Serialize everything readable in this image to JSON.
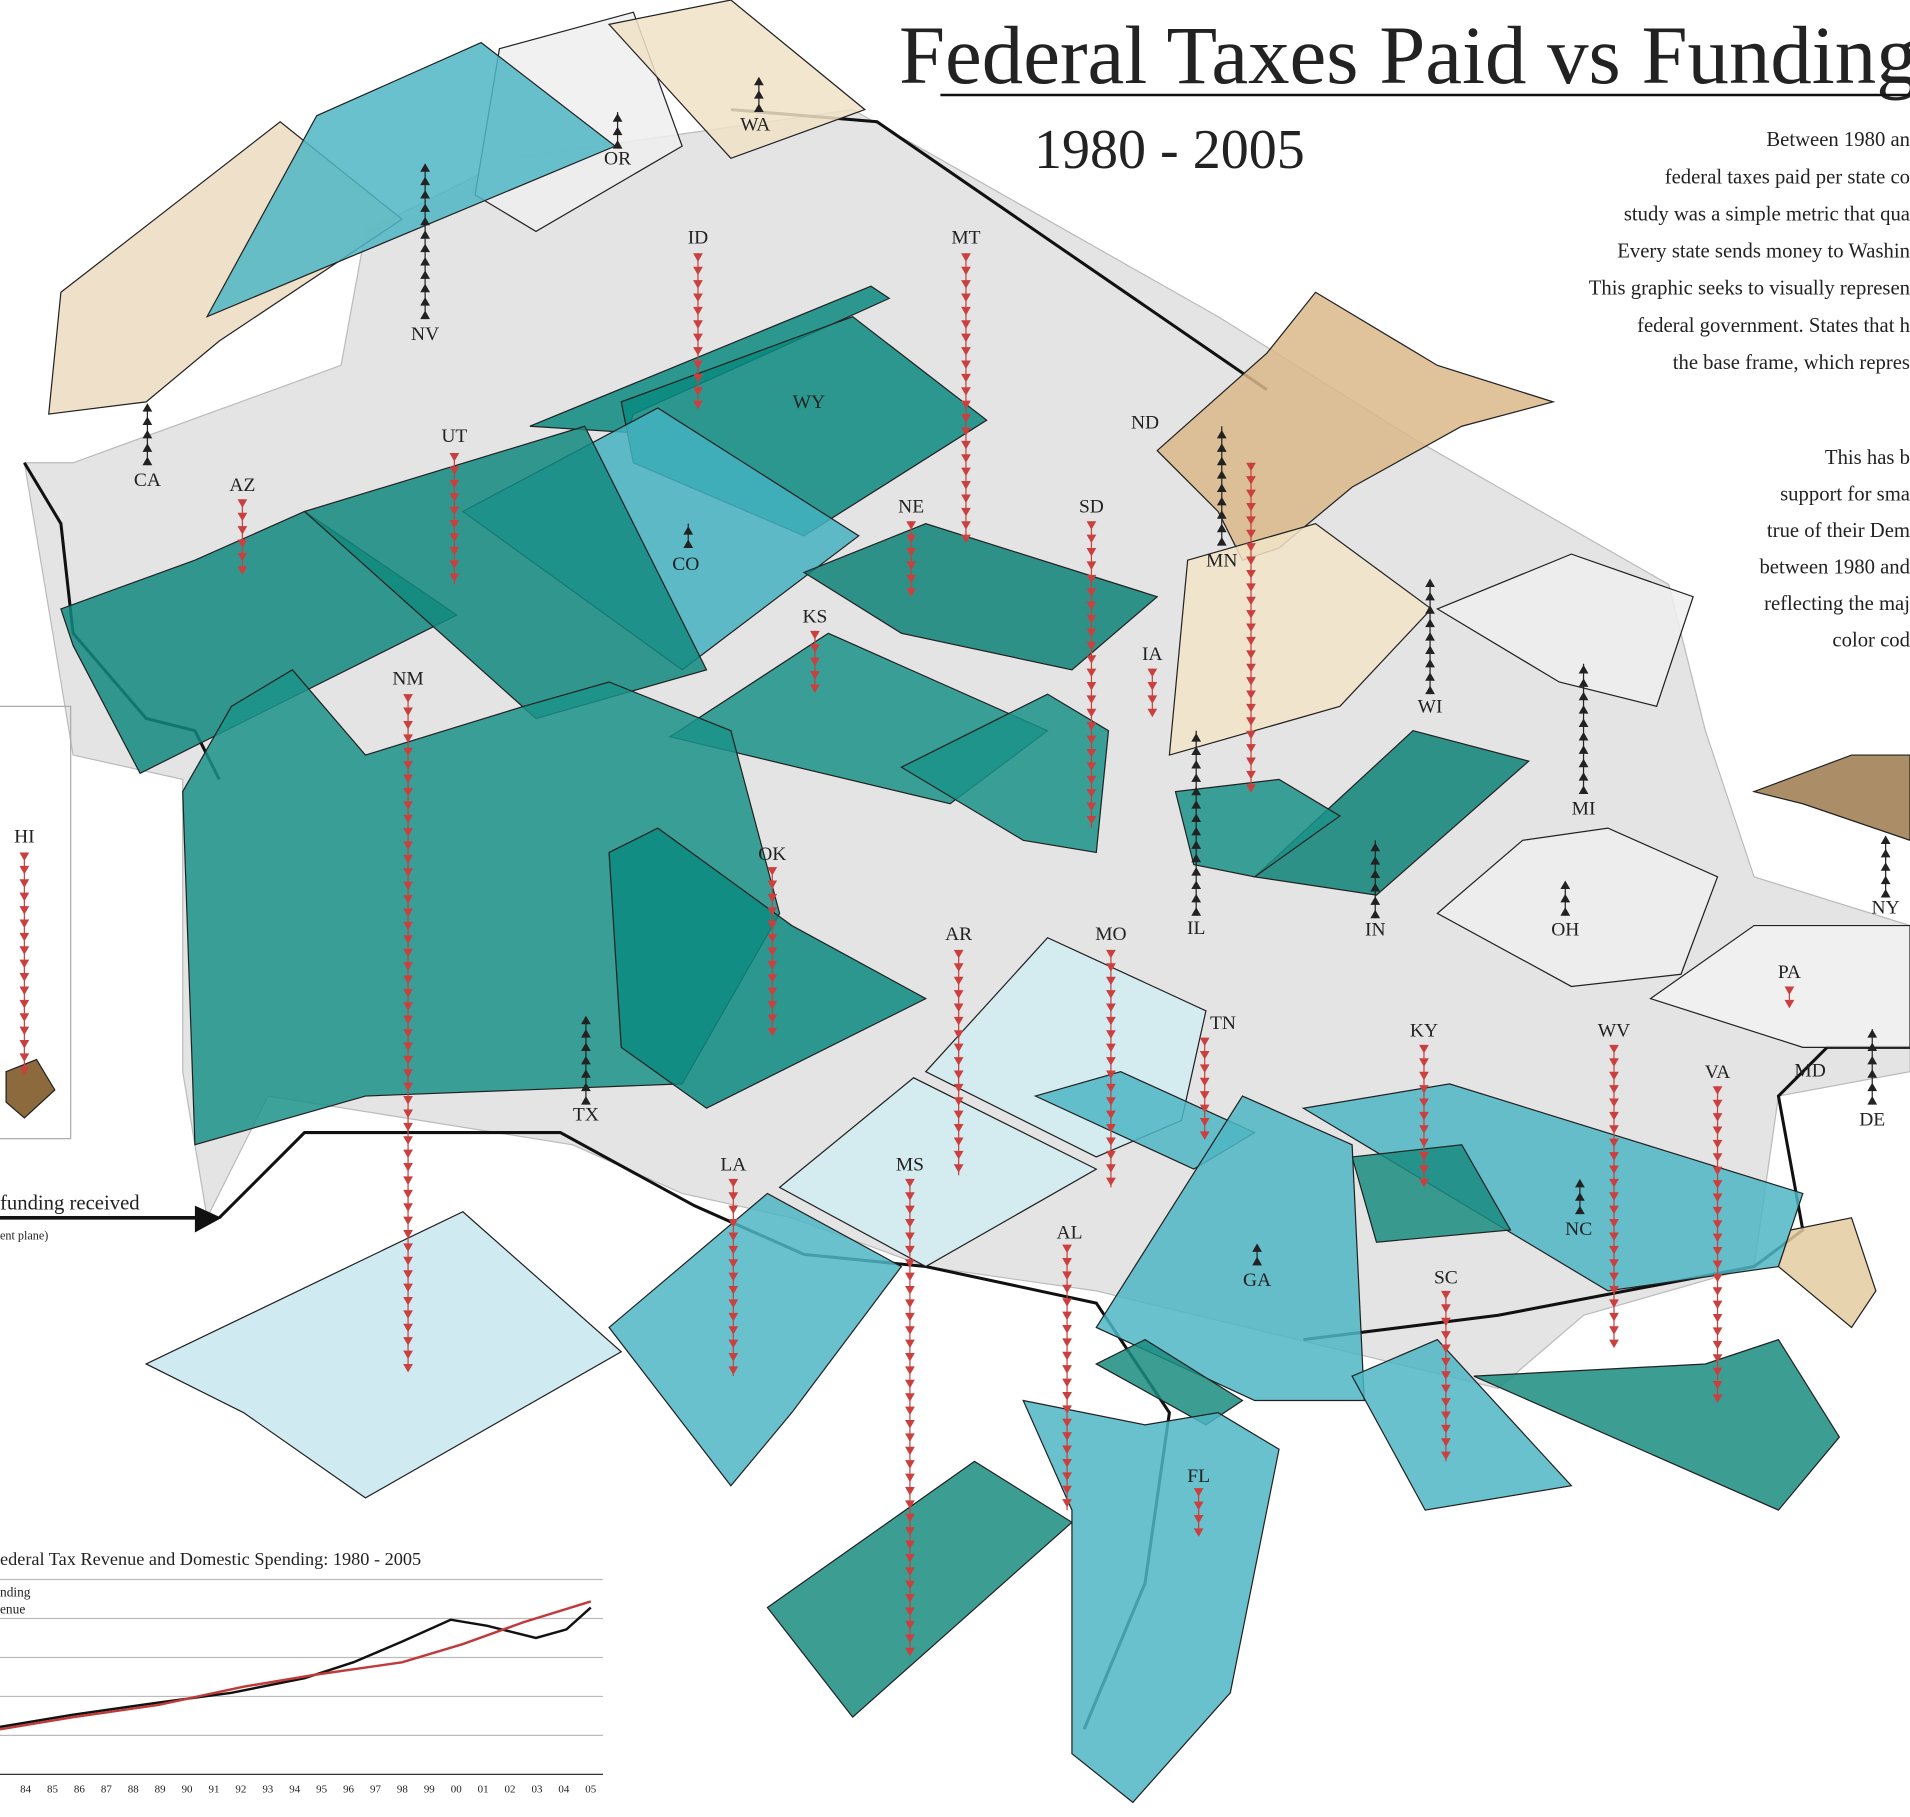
{
  "header": {
    "title": "Federal Taxes Paid vs Funding",
    "subtitle": "1980 - 2005"
  },
  "intro": {
    "paragraph1": [
      "Between 1980 an",
      "federal taxes paid per state co",
      "study was a simple metric that qua",
      "Every state sends money to Washin",
      "This graphic seeks to visually represen",
      "federal government. States that h",
      "the base frame, which repres"
    ],
    "paragraph2": [
      "This has b",
      "support for sma",
      "true of their Dem",
      "between 1980 and",
      "reflecting the maj",
      "color cod"
    ]
  },
  "legend": {
    "arrow_label": "funding received",
    "arrow_note": "ent plane)"
  },
  "states": [
    "OR",
    "WA",
    "NV",
    "ID",
    "MT",
    "CA",
    "UT",
    "WY",
    "AZ",
    "ND",
    "CO",
    "NE",
    "SD",
    "MN",
    "KS",
    "IA",
    "NM",
    "WI",
    "HI",
    "MI",
    "OK",
    "IL",
    "IN",
    "OH",
    "NY",
    "AR",
    "MO",
    "TX",
    "TN",
    "KY",
    "WV",
    "PA",
    "VA",
    "MD",
    "DE",
    "LA",
    "MS",
    "AL",
    "NC",
    "GA",
    "SC",
    "FL"
  ],
  "inset_chart": {
    "title": "ederal Tax Revenue and Domestic Spending: 1980 - 2005",
    "legend": [
      "nding",
      "enue"
    ],
    "categories": [
      "84",
      "85",
      "86",
      "87",
      "88",
      "89",
      "90",
      "91",
      "92",
      "93",
      "94",
      "95",
      "96",
      "97",
      "98",
      "99",
      "00",
      "01",
      "02",
      "03",
      "04",
      "05"
    ]
  }
}
